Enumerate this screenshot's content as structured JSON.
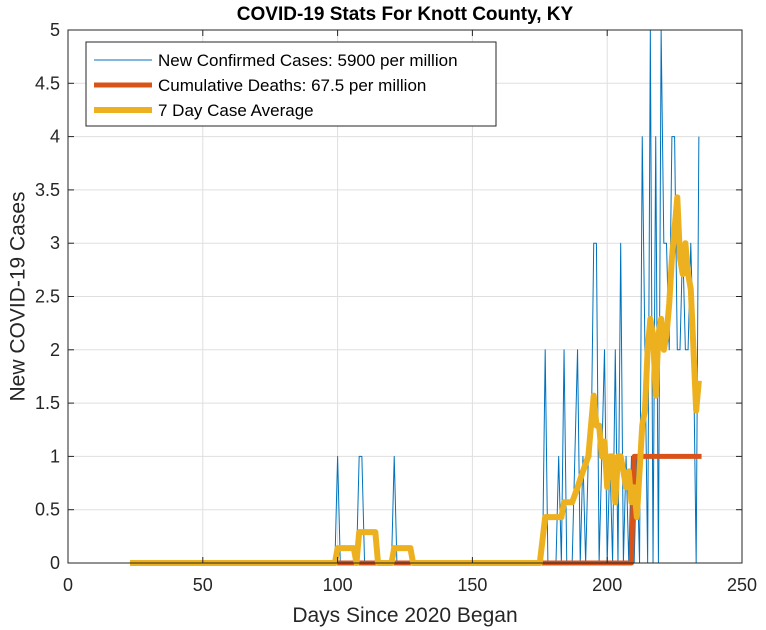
{
  "chart_data": {
    "type": "line",
    "title": "COVID-19 Stats For Knott County, KY",
    "xlabel": "Days Since 2020 Began",
    "ylabel": "New COVID-19 Cases",
    "xlim": [
      0,
      250
    ],
    "ylim": [
      0,
      5
    ],
    "x_ticks": [
      0,
      50,
      100,
      150,
      200,
      250
    ],
    "y_ticks": [
      0,
      0.5,
      1,
      1.5,
      2,
      2.5,
      3,
      3.5,
      4,
      4.5,
      5
    ],
    "x_tick_labels": [
      "0",
      "50",
      "100",
      "150",
      "200",
      "250"
    ],
    "y_tick_labels": [
      "0",
      "0.5",
      "1",
      "1.5",
      "2",
      "2.5",
      "3",
      "3.5",
      "4",
      "4.5",
      "5"
    ],
    "grid": true,
    "legend_position": "top-left",
    "series": [
      {
        "name": "New Confirmed Cases: 5900 per million",
        "color": "#0072BD",
        "points": [
          [
            23,
            0
          ],
          [
            99,
            0
          ],
          [
            100,
            1
          ],
          [
            101,
            0
          ],
          [
            107,
            0
          ],
          [
            108,
            1
          ],
          [
            109,
            1
          ],
          [
            110,
            0
          ],
          [
            120,
            0
          ],
          [
            121,
            1
          ],
          [
            122,
            0
          ],
          [
            176,
            0
          ],
          [
            177,
            2
          ],
          [
            178,
            0
          ],
          [
            181,
            0
          ],
          [
            182,
            1
          ],
          [
            183,
            0
          ],
          [
            184,
            2
          ],
          [
            185,
            0
          ],
          [
            187,
            0
          ],
          [
            188,
            1
          ],
          [
            189,
            2
          ],
          [
            190,
            0
          ],
          [
            191,
            1
          ],
          [
            192,
            0
          ],
          [
            193,
            1
          ],
          [
            194,
            1
          ],
          [
            195,
            3
          ],
          [
            196,
            3
          ],
          [
            197,
            0
          ],
          [
            198,
            1
          ],
          [
            199,
            2
          ],
          [
            200,
            0
          ],
          [
            201,
            1
          ],
          [
            202,
            0
          ],
          [
            203,
            2
          ],
          [
            204,
            0
          ],
          [
            205,
            3
          ],
          [
            206,
            0
          ],
          [
            207,
            1
          ],
          [
            208,
            0
          ],
          [
            209,
            1
          ],
          [
            210,
            0
          ],
          [
            211,
            1
          ],
          [
            212,
            0
          ],
          [
            213,
            4
          ],
          [
            214,
            2
          ],
          [
            215,
            0
          ],
          [
            216,
            5
          ],
          [
            217,
            0
          ],
          [
            218,
            4
          ],
          [
            219,
            0
          ],
          [
            220,
            5
          ],
          [
            221,
            3
          ],
          [
            222,
            3
          ],
          [
            223,
            2
          ],
          [
            224,
            4
          ],
          [
            225,
            4
          ],
          [
            226,
            2
          ],
          [
            227,
            2
          ],
          [
            228,
            3
          ],
          [
            229,
            2
          ],
          [
            230,
            2
          ],
          [
            231,
            3
          ],
          [
            232,
            2
          ],
          [
            233,
            0
          ],
          [
            234,
            4
          ]
        ]
      },
      {
        "name": "Cumulative Deaths: 67.5 per million",
        "color": "#D95319",
        "points": [
          [
            23,
            0
          ],
          [
            209,
            0
          ],
          [
            210,
            1
          ],
          [
            235,
            1
          ]
        ]
      },
      {
        "name": "7 Day Case Average",
        "color": "#EDB120",
        "points": [
          [
            23,
            0
          ],
          [
            99,
            0
          ],
          [
            100,
            0.14
          ],
          [
            106,
            0.14
          ],
          [
            107,
            0
          ],
          [
            108,
            0.29
          ],
          [
            114,
            0.29
          ],
          [
            115,
            0
          ],
          [
            120,
            0
          ],
          [
            121,
            0.14
          ],
          [
            127,
            0.14
          ],
          [
            128,
            0
          ],
          [
            175,
            0
          ],
          [
            177,
            0.43
          ],
          [
            183,
            0.43
          ],
          [
            184,
            0.57
          ],
          [
            187,
            0.57
          ],
          [
            189,
            0.71
          ],
          [
            191,
            0.86
          ],
          [
            193,
            1.0
          ],
          [
            194,
            1.29
          ],
          [
            195,
            1.57
          ],
          [
            196,
            1.29
          ],
          [
            197,
            1.29
          ],
          [
            198,
            1.0
          ],
          [
            199,
            1.14
          ],
          [
            200,
            0.71
          ],
          [
            201,
            1.0
          ],
          [
            202,
            1.0
          ],
          [
            203,
            0.57
          ],
          [
            204,
            1.0
          ],
          [
            205,
            1.0
          ],
          [
            206,
            0.86
          ],
          [
            207,
            0.71
          ],
          [
            208,
            0.86
          ],
          [
            209,
            0.57
          ],
          [
            210,
            0.71
          ],
          [
            211,
            0.43
          ],
          [
            212,
            0.86
          ],
          [
            213,
            1.29
          ],
          [
            214,
            1.43
          ],
          [
            215,
            2.0
          ],
          [
            216,
            2.29
          ],
          [
            217,
            2.14
          ],
          [
            218,
            1.57
          ],
          [
            219,
            2.14
          ],
          [
            220,
            2.29
          ],
          [
            221,
            2.0
          ],
          [
            222,
            2.14
          ],
          [
            223,
            2.43
          ],
          [
            224,
            2.86
          ],
          [
            225,
            3.14
          ],
          [
            226,
            3.43
          ],
          [
            227,
            2.86
          ],
          [
            228,
            2.71
          ],
          [
            229,
            3.0
          ],
          [
            230,
            2.71
          ],
          [
            231,
            2.57
          ],
          [
            232,
            2.0
          ],
          [
            233,
            1.43
          ],
          [
            234,
            1.71
          ]
        ]
      }
    ]
  }
}
